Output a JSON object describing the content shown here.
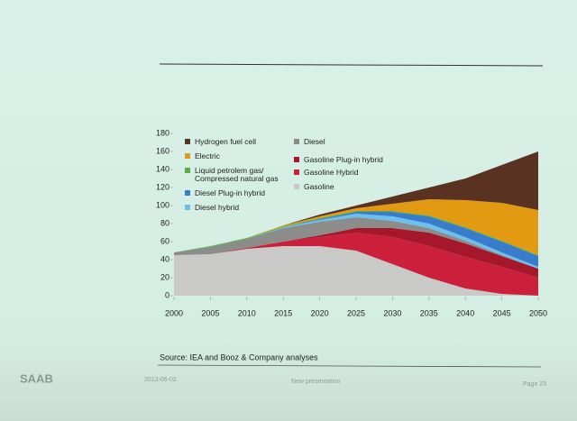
{
  "chart_data": {
    "type": "stacked-area",
    "x": [
      2000,
      2005,
      2010,
      2015,
      2020,
      2025,
      2030,
      2035,
      2040,
      2045,
      2050
    ],
    "xlim": [
      2000,
      2050
    ],
    "xticks": [
      2000,
      2005,
      2010,
      2015,
      2020,
      2025,
      2030,
      2035,
      2040,
      2045,
      2050
    ],
    "ylim": [
      0,
      180
    ],
    "yticks": [
      0,
      20,
      40,
      60,
      80,
      100,
      120,
      140,
      160,
      180
    ],
    "series": [
      {
        "name": "Gasoline",
        "color": "#c9c9c7",
        "values": [
          45,
          46,
          52,
          55,
          55,
          50,
          35,
          20,
          8,
          2,
          0
        ]
      },
      {
        "name": "Gasoline Hybrid",
        "color": "#cc1f3c",
        "values": [
          0,
          0,
          1,
          5,
          10,
          20,
          30,
          35,
          35,
          30,
          20
        ]
      },
      {
        "name": "Gasoline Plug-in hybrid",
        "color": "#a5182b",
        "values": [
          0,
          0,
          0,
          0,
          2,
          5,
          10,
          15,
          15,
          12,
          10
        ]
      },
      {
        "name": "Diesel",
        "color": "#8c8c8a",
        "values": [
          3,
          8,
          10,
          15,
          15,
          12,
          8,
          5,
          3,
          1,
          0
        ]
      },
      {
        "name": "Diesel hybrid",
        "color": "#6cc0ee",
        "values": [
          0,
          0,
          0,
          1,
          2,
          4,
          5,
          5,
          4,
          3,
          2
        ]
      },
      {
        "name": "Diesel Plug-in hybrid",
        "color": "#3a7ccc",
        "values": [
          0,
          0,
          0,
          0,
          1,
          2,
          5,
          8,
          10,
          12,
          12
        ]
      },
      {
        "name": "Liquid petrolem gas/ Compressed natural gas",
        "color": "#58b040",
        "values": [
          0,
          1,
          1,
          1,
          1,
          1,
          1,
          1,
          1,
          1,
          1
        ]
      },
      {
        "name": "Electric",
        "color": "#e29a12",
        "values": [
          0,
          0,
          0,
          1,
          2,
          3,
          8,
          18,
          30,
          42,
          50
        ]
      },
      {
        "name": "Hydrogen fuel cell",
        "color": "#5a3222",
        "values": [
          0,
          0,
          0,
          0,
          2,
          3,
          8,
          13,
          24,
          42,
          65
        ]
      }
    ]
  },
  "source": "Source: IEA and Booz & Company analyses",
  "logo": "SAAB",
  "footer": {
    "date": "2013-06-02",
    "title": "New presentation",
    "page": "Page 23"
  }
}
